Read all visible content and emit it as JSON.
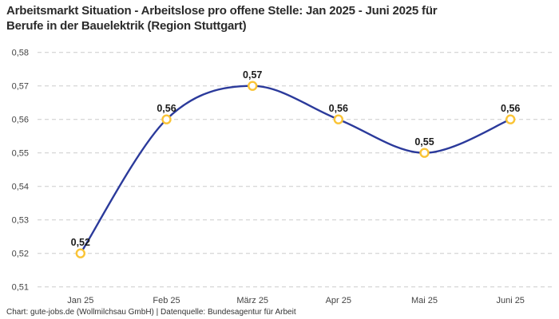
{
  "title": {
    "line1": "Arbeitsmarkt Situation - Arbeitslose pro offene Stelle: Jan 2025 - Juni 2025 für",
    "line2": "Berufe in der Bauelektrik (Region Stuttgart)"
  },
  "footer": "Chart: gute-jobs.de (Wollmilchsau GmbH) | Datenquelle: Bundesagentur für Arbeit",
  "chart_data": {
    "type": "line",
    "title": "Arbeitsmarkt Situation - Arbeitslose pro offene Stelle: Jan 2025 - Juni 2025 für Berufe in der Bauelektrik (Region Stuttgart)",
    "categories": [
      "Jan 25",
      "Feb 25",
      "März 25",
      "Apr 25",
      "Mai 25",
      "Juni 25"
    ],
    "values": [
      0.52,
      0.56,
      0.57,
      0.56,
      0.55,
      0.56
    ],
    "point_labels": [
      "0,52",
      "0,56",
      "0,57",
      "0,56",
      "0,55",
      "0,56"
    ],
    "y_ticks": [
      {
        "value": 0.58,
        "label": "0,58"
      },
      {
        "value": 0.57,
        "label": "0,57"
      },
      {
        "value": 0.56,
        "label": "0,56"
      },
      {
        "value": 0.55,
        "label": "0,55"
      },
      {
        "value": 0.54,
        "label": "0,54"
      },
      {
        "value": 0.53,
        "label": "0,53"
      },
      {
        "value": 0.52,
        "label": "0,52"
      },
      {
        "value": 0.51,
        "label": "0,51"
      }
    ],
    "ylim": [
      0.51,
      0.58
    ],
    "xlabel": "",
    "ylabel": "",
    "grid": "horizontal-dashed",
    "legend": "none",
    "smooth": true,
    "colors": {
      "line": "#2B3A9B",
      "marker_ring": "#FAC436",
      "marker_fill": "#FFFFFF",
      "gridline": "#CCCCCC",
      "axis_text": "#444444",
      "point_label_text": "#1A1A1A"
    }
  }
}
